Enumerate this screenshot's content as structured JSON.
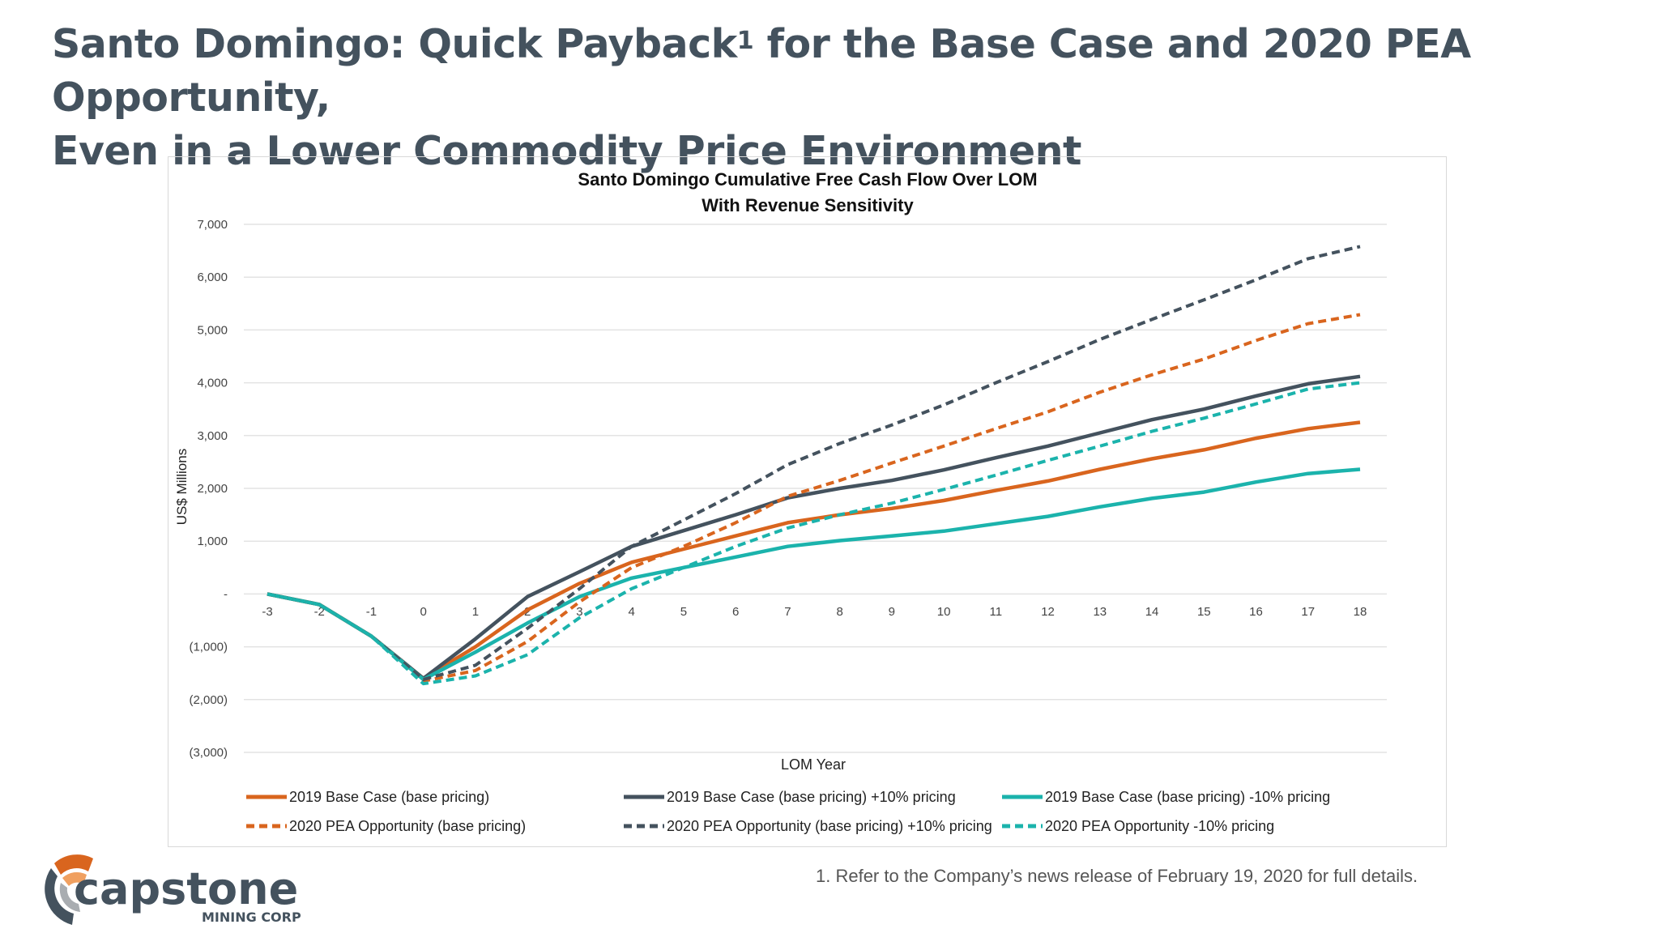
{
  "slide": {
    "title_line1": "Santo Domingo: Quick Payback",
    "title_sup": "1",
    "title_line1_rest": " for the Base Case and 2020 PEA Opportunity,",
    "title_line2": "Even in a Lower Commodity Price Environment",
    "footnote": "1. Refer to the Company’s news release of February 19, 2020 for full details.",
    "logo": {
      "name": "capstone",
      "sub": "MINING CORP"
    },
    "colors": {
      "title": "#44525e",
      "orange": "#d9651e",
      "dark": "#44525e",
      "teal": "#1bb3ac"
    }
  },
  "chart_data": {
    "type": "line",
    "title": "Santo Domingo Cumulative Free Cash Flow Over LOM",
    "subtitle": "With Revenue Sensitivity",
    "xlabel": "LOM Year",
    "ylabel": "US$ Millions",
    "x": [
      -3,
      -2,
      -1,
      0,
      1,
      2,
      3,
      4,
      5,
      6,
      7,
      8,
      9,
      10,
      11,
      12,
      13,
      14,
      15,
      16,
      17,
      18
    ],
    "ylim": [
      -3000,
      7000
    ],
    "yticks": [
      7000,
      6000,
      5000,
      4000,
      3000,
      2000,
      1000,
      0,
      -1000,
      -2000,
      -3000
    ],
    "ytick_labels": [
      "7,000",
      "6,000",
      "5,000",
      "4,000",
      "3,000",
      "2,000",
      "1,000",
      "-",
      "(1,000)",
      "(2,000)",
      "(3,000)"
    ],
    "grid": true,
    "legend": "bottom",
    "series": [
      {
        "name": "2019 Base Case (base pricing)",
        "color": "#d9651e",
        "dash": false,
        "values": [
          0,
          -200,
          -800,
          -1600,
          -1000,
          -300,
          200,
          600,
          850,
          1100,
          1350,
          1500,
          1620,
          1770,
          1960,
          2140,
          2360,
          2560,
          2730,
          2950,
          3130,
          3250
        ]
      },
      {
        "name": "2019 Base Case (base pricing) +10% pricing",
        "color": "#44525e",
        "dash": false,
        "values": [
          0,
          -200,
          -800,
          -1600,
          -850,
          -50,
          420,
          900,
          1200,
          1500,
          1820,
          2000,
          2150,
          2350,
          2580,
          2800,
          3050,
          3300,
          3500,
          3750,
          3980,
          4120
        ]
      },
      {
        "name": "2019 Base Case (base pricing) -10% pricing",
        "color": "#1bb3ac",
        "dash": false,
        "values": [
          0,
          -200,
          -800,
          -1620,
          -1100,
          -550,
          -50,
          300,
          500,
          700,
          900,
          1010,
          1100,
          1190,
          1330,
          1470,
          1650,
          1810,
          1930,
          2120,
          2280,
          2360
        ]
      },
      {
        "name": "2020 PEA Opportunity (base pricing)",
        "color": "#d9651e",
        "dash": true,
        "values": [
          0,
          -200,
          -800,
          -1650,
          -1450,
          -900,
          -150,
          500,
          900,
          1350,
          1850,
          2150,
          2480,
          2800,
          3130,
          3450,
          3820,
          4150,
          4450,
          4800,
          5120,
          5290
        ]
      },
      {
        "name": "2020 PEA Opportunity (base pricing) +10% pricing",
        "color": "#44525e",
        "dash": true,
        "values": [
          0,
          -200,
          -800,
          -1620,
          -1350,
          -650,
          100,
          900,
          1400,
          1900,
          2450,
          2850,
          3200,
          3580,
          4000,
          4400,
          4820,
          5200,
          5570,
          5950,
          6350,
          6580
        ]
      },
      {
        "name": "2020 PEA Opportunity -10% pricing",
        "color": "#1bb3ac",
        "dash": true,
        "values": [
          0,
          -200,
          -800,
          -1700,
          -1550,
          -1150,
          -450,
          100,
          500,
          900,
          1250,
          1500,
          1720,
          1980,
          2250,
          2530,
          2800,
          3080,
          3330,
          3600,
          3880,
          4000
        ]
      }
    ]
  }
}
